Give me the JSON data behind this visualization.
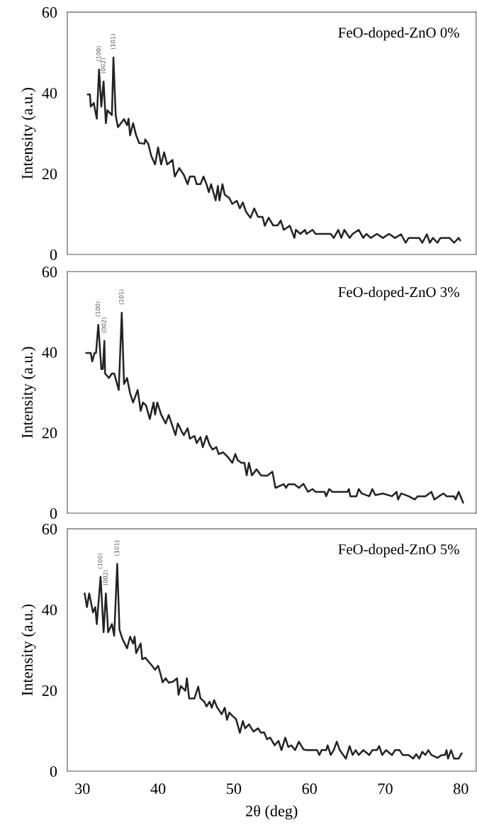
{
  "chart_data": [
    {
      "type": "line",
      "title": "FeO-doped-ZnO 0%",
      "ylabel": "Intensity (a.u.)",
      "xlim": [
        28,
        82
      ],
      "ylim": [
        0,
        60
      ],
      "yticks": [
        0,
        20,
        40,
        60
      ],
      "tick_labels": "y",
      "grid": false,
      "legend": false,
      "annotations": [
        {
          "text": "(100)",
          "x": 32.2,
          "y": 45.8
        },
        {
          "text": "(002)",
          "x": 32.8,
          "y": 42.8
        },
        {
          "text": "(101)",
          "x": 34.1,
          "y": 48.8
        }
      ],
      "x": [
        30.7,
        31.0,
        31.1,
        31.5,
        31.9,
        32.2,
        32.5,
        32.8,
        33.1,
        33.3,
        33.9,
        34.1,
        34.4,
        34.7,
        35.1,
        35.5,
        35.9,
        36.1,
        36.3,
        36.7,
        37.1,
        37.5,
        38.2,
        38.3,
        38.7,
        39.1,
        39.6,
        40.0,
        40.4,
        40.8,
        41.2,
        41.9,
        42.2,
        42.8,
        43.4,
        43.9,
        44.2,
        44.8,
        45.1,
        45.6,
        46.0,
        46.4,
        46.7,
        47.0,
        47.6,
        47.9,
        48.1,
        48.5,
        48.8,
        49.4,
        49.8,
        50.4,
        50.8,
        51.2,
        51.6,
        52.2,
        52.7,
        53.2,
        53.8,
        54.1,
        54.6,
        55.2,
        55.8,
        56.2,
        56.6,
        57.4,
        58.0,
        58.2,
        58.8,
        59.4,
        59.6,
        60.4,
        60.8,
        62.8,
        63.2,
        63.8,
        64.2,
        64.6,
        65.3,
        65.7,
        66.5,
        67.1,
        67.5,
        68.1,
        68.9,
        69.7,
        70.5,
        71.3,
        72.1,
        72.7,
        73.1,
        74.5,
        74.9,
        75.5,
        75.9,
        76.3,
        76.9,
        77.3,
        78.5,
        79.1,
        79.7,
        79.9
      ],
      "series": [
        {
          "color": "#222222",
          "values": [
            39.6,
            39.6,
            36.6,
            37.5,
            33.6,
            45.8,
            36.6,
            42.8,
            32.5,
            35.7,
            34.5,
            48.8,
            34.4,
            31.5,
            32.5,
            33.5,
            32.0,
            33.6,
            29.5,
            32.5,
            29.5,
            27.6,
            27.4,
            28.5,
            27.4,
            24.4,
            22.3,
            26.5,
            22.3,
            25.3,
            22.3,
            23.4,
            19.3,
            21.4,
            19.7,
            17.4,
            19.3,
            19.3,
            17.4,
            17.4,
            19.3,
            17.4,
            15.4,
            17.4,
            13.4,
            17.0,
            13.4,
            17.4,
            14.8,
            14.0,
            12.5,
            13.3,
            11.4,
            12.9,
            10.6,
            9.1,
            11.4,
            9.3,
            9.3,
            7.1,
            9.1,
            7.2,
            7.2,
            8.4,
            6.1,
            7.1,
            4.1,
            6.1,
            5.1,
            6.1,
            5.1,
            6.1,
            5.1,
            5.1,
            4.1,
            6.1,
            4.1,
            6.1,
            4.1,
            5.1,
            6.1,
            4.1,
            5.1,
            4.1,
            5.1,
            4.1,
            5.1,
            4.1,
            5.0,
            2.9,
            4.1,
            4.1,
            2.9,
            5.0,
            2.9,
            4.1,
            2.9,
            4.1,
            4.1,
            2.9,
            4.1,
            3.5
          ]
        }
      ]
    },
    {
      "type": "line",
      "title": "FeO-doped-ZnO 3%",
      "ylabel": "Intensity (a.u.)",
      "xlim": [
        28,
        82
      ],
      "ylim": [
        0,
        60
      ],
      "yticks": [
        0,
        20,
        40,
        60
      ],
      "tick_labels": "y",
      "grid": false,
      "legend": false,
      "annotations": [
        {
          "text": "(100)",
          "x": 32.1,
          "y": 46.8
        },
        {
          "text": "(002)",
          "x": 32.9,
          "y": 42.8
        },
        {
          "text": "(101)",
          "x": 35.2,
          "y": 49.8
        }
      ],
      "x": [
        30.5,
        31.1,
        31.3,
        31.6,
        31.8,
        32.1,
        32.5,
        32.7,
        32.9,
        33.0,
        33.5,
        33.9,
        34.2,
        34.5,
        34.8,
        35.2,
        35.5,
        35.9,
        36.3,
        36.7,
        37.3,
        37.7,
        38.0,
        38.4,
        38.9,
        39.4,
        39.6,
        39.9,
        40.4,
        41.0,
        41.4,
        42.3,
        42.6,
        43.2,
        43.4,
        43.9,
        44.2,
        44.8,
        45.1,
        45.6,
        45.9,
        46.4,
        46.8,
        47.2,
        47.7,
        48.0,
        48.6,
        49.2,
        49.8,
        50.2,
        50.5,
        51.0,
        51.4,
        51.7,
        52.0,
        52.4,
        53.0,
        53.6,
        54.4,
        55.1,
        55.5,
        56.6,
        56.9,
        57.2,
        58.0,
        58.6,
        59.2,
        59.8,
        60.4,
        60.8,
        62.0,
        62.2,
        62.6,
        63.0,
        65.0,
        65.2,
        65.4,
        66.2,
        66.5,
        66.9,
        67.9,
        68.3,
        68.7,
        69.7,
        70.9,
        71.5,
        71.7,
        72.1,
        73.1,
        73.9,
        74.3,
        75.3,
        76.1,
        76.5,
        77.1,
        77.7,
        78.1,
        79.1,
        79.3,
        79.7,
        80.3
      ],
      "series": [
        {
          "color": "#222222",
          "values": [
            39.8,
            39.8,
            37.7,
            39.8,
            39.8,
            46.8,
            35.8,
            35.8,
            42.8,
            34.7,
            33.6,
            34.7,
            34.7,
            32.7,
            30.6,
            49.8,
            32.1,
            33.6,
            29.8,
            27.5,
            30.6,
            25.4,
            27.5,
            26.8,
            23.4,
            27.5,
            24.5,
            27.5,
            24.5,
            22.3,
            24.4,
            19.4,
            22.3,
            20.0,
            19.4,
            21.1,
            18.5,
            19.2,
            17.4,
            18.9,
            16.4,
            19.2,
            17.0,
            15.8,
            16.4,
            14.7,
            15.1,
            14.0,
            12.5,
            14.7,
            13.2,
            12.5,
            12.5,
            9.4,
            12.5,
            9.4,
            10.9,
            9.4,
            9.3,
            10.3,
            6.3,
            7.2,
            6.3,
            7.2,
            7.2,
            6.3,
            7.3,
            5.3,
            6.0,
            5.3,
            5.3,
            4.2,
            6.0,
            5.3,
            5.3,
            6.0,
            4.2,
            4.2,
            6.0,
            4.9,
            4.2,
            6.0,
            4.5,
            4.9,
            4.2,
            5.3,
            3.4,
            4.9,
            4.2,
            3.4,
            4.2,
            4.2,
            5.3,
            3.4,
            4.2,
            4.9,
            4.2,
            4.2,
            3.4,
            5.3,
            2.6
          ]
        }
      ]
    },
    {
      "type": "line",
      "title": "FeO-doped-ZnO 5%",
      "ylabel": "Intensity (a.u.)",
      "xlabel": "2θ (deg)",
      "xlim": [
        28,
        82
      ],
      "ylim": [
        0,
        60
      ],
      "xticks": [
        30,
        40,
        50,
        60,
        70,
        80
      ],
      "yticks": [
        0,
        20,
        40,
        60
      ],
      "grid": false,
      "legend": false,
      "annotations": [
        {
          "text": "(100)",
          "x": 32.4,
          "y": 48.1
        },
        {
          "text": "(002)",
          "x": 33.1,
          "y": 44.0
        },
        {
          "text": "(101)",
          "x": 34.6,
          "y": 51.3
        }
      ],
      "x": [
        30.3,
        30.6,
        30.9,
        31.4,
        31.7,
        31.9,
        32.4,
        32.8,
        33.1,
        33.4,
        33.9,
        34.2,
        34.6,
        34.9,
        35.3,
        35.9,
        36.3,
        36.7,
        36.9,
        37.1,
        37.7,
        37.9,
        38.3,
        39.2,
        39.6,
        40.0,
        40.3,
        40.6,
        41.0,
        41.4,
        42.0,
        42.5,
        42.7,
        43.0,
        43.6,
        43.8,
        44.1,
        44.8,
        45.3,
        45.6,
        46.1,
        46.4,
        46.8,
        47.1,
        47.4,
        47.8,
        48.4,
        48.8,
        49.1,
        49.4,
        49.8,
        50.3,
        50.8,
        51.2,
        51.5,
        52.0,
        52.6,
        53.2,
        53.6,
        54.0,
        54.4,
        54.8,
        55.4,
        55.9,
        56.3,
        56.8,
        57.2,
        57.6,
        58.1,
        58.6,
        59.2,
        59.6,
        61.0,
        61.3,
        61.6,
        62.2,
        62.4,
        62.8,
        63.2,
        63.6,
        64.0,
        64.8,
        65.3,
        65.7,
        66.1,
        66.5,
        67.1,
        67.9,
        68.3,
        68.9,
        69.2,
        69.6,
        70.1,
        70.9,
        71.3,
        71.9,
        72.3,
        73.1,
        73.7,
        74.1,
        74.5,
        74.9,
        75.3,
        75.7,
        76.1,
        76.9,
        77.5,
        77.9,
        78.1,
        78.3,
        78.7,
        79.1,
        79.7,
        80.1
      ],
      "series": [
        {
          "color": "#222222",
          "values": [
            44.0,
            40.6,
            44.0,
            39.3,
            40.6,
            36.4,
            48.1,
            34.4,
            44.0,
            34.4,
            36.4,
            33.5,
            51.3,
            35.0,
            32.7,
            30.4,
            33.3,
            31.6,
            33.3,
            29.2,
            31.6,
            27.7,
            28.1,
            26.1,
            25.1,
            26.1,
            24.2,
            22.0,
            23.0,
            21.9,
            22.2,
            23.0,
            18.9,
            21.1,
            19.9,
            23.0,
            18.0,
            18.0,
            20.9,
            18.0,
            17.2,
            16.0,
            17.2,
            15.7,
            17.6,
            15.8,
            14.1,
            15.7,
            12.7,
            14.5,
            13.7,
            12.9,
            9.5,
            12.4,
            10.6,
            11.6,
            9.8,
            10.6,
            9.5,
            9.6,
            7.9,
            8.3,
            6.4,
            7.5,
            5.2,
            8.3,
            6.0,
            6.4,
            5.2,
            7.3,
            5.4,
            5.2,
            5.2,
            4.0,
            5.2,
            5.2,
            6.4,
            4.0,
            5.2,
            7.3,
            5.2,
            3.1,
            6.2,
            4.0,
            5.2,
            4.0,
            5.2,
            4.0,
            5.2,
            5.2,
            6.2,
            4.0,
            5.2,
            4.0,
            5.2,
            5.2,
            4.0,
            4.0,
            3.1,
            4.2,
            3.1,
            4.8,
            4.0,
            5.2,
            4.0,
            3.3,
            4.0,
            4.0,
            5.2,
            3.1,
            5.2,
            3.1,
            3.1,
            4.4
          ]
        }
      ]
    }
  ]
}
